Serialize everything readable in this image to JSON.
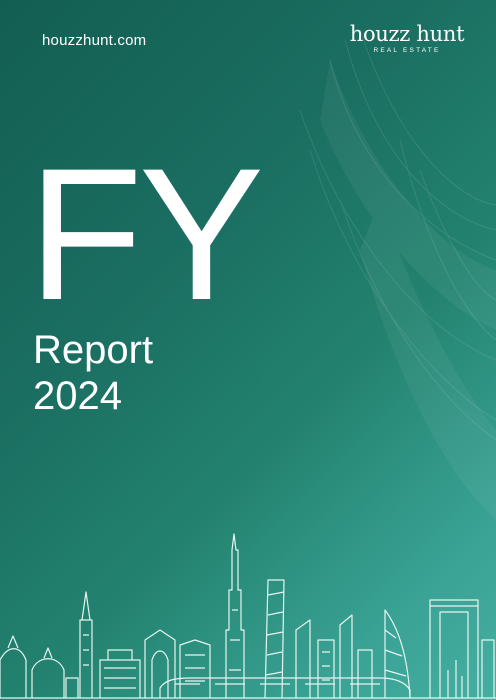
{
  "header": {
    "website": "houzzhunt.com",
    "logo_name": "houzz hunt",
    "logo_tagline": "REAL ESTATE"
  },
  "cover": {
    "title": "FY",
    "subtitle_line1": "Report",
    "subtitle_line2": "2024"
  },
  "colors": {
    "background_dark": "#135e52",
    "background_light": "#45aea0",
    "text": "#ffffff"
  },
  "illustration": {
    "type": "city-skyline-line-art",
    "icon": "dubai-skyline-illustration"
  }
}
